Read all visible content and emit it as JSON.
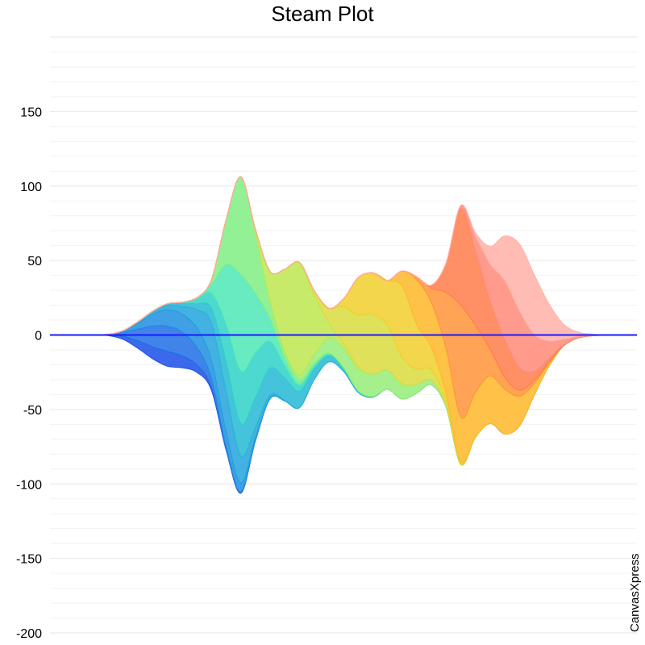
{
  "title": "Steam Plot",
  "watermark": "CanvasXpress",
  "chart_data": {
    "type": "area",
    "stacking": "streamgraph",
    "title": "Steam Plot",
    "xlabel": "",
    "ylabel": "",
    "ylim": [
      -200,
      200
    ],
    "yticks": [
      -200,
      -150,
      -100,
      -50,
      0,
      50,
      100,
      150
    ],
    "grid": true,
    "legend": "none",
    "x_count": 41,
    "series": [
      {
        "color": "#1a4fe8",
        "values": [
          0,
          0,
          0,
          0,
          0.5,
          2,
          5,
          8,
          10,
          8,
          5,
          2,
          0.5,
          0,
          0,
          0,
          0,
          0,
          0,
          0,
          0,
          0,
          0,
          0,
          0,
          0,
          0,
          0,
          0,
          0,
          0,
          0,
          0,
          0,
          0,
          0,
          0,
          0,
          0,
          0,
          0
        ]
      },
      {
        "color": "#1f6fe5",
        "values": [
          0,
          0,
          0,
          0,
          0.5,
          3,
          8,
          14,
          17,
          16,
          12,
          6,
          2,
          1,
          0,
          0,
          0,
          0,
          0,
          0,
          0,
          0,
          0,
          0,
          0,
          0,
          0,
          0,
          0,
          0,
          0,
          0,
          0,
          0,
          0,
          0,
          0,
          0,
          0,
          0,
          0
        ]
      },
      {
        "color": "#1f8ee0",
        "values": [
          0,
          0,
          0,
          0,
          0,
          1,
          4,
          8,
          11,
          12,
          13,
          12,
          10,
          6,
          2,
          0.5,
          0,
          0,
          0,
          0,
          0,
          0,
          0,
          0,
          0,
          0,
          0,
          0,
          0,
          0,
          0,
          0,
          0,
          0,
          0,
          0,
          0,
          0,
          0,
          0,
          0
        ]
      },
      {
        "color": "#22a3dc",
        "values": [
          0,
          0,
          0,
          0,
          0,
          0,
          1,
          2,
          3,
          5,
          12,
          25,
          27,
          18,
          7,
          2,
          0.5,
          0,
          0,
          0,
          0,
          0,
          0,
          0,
          0,
          0,
          0,
          0,
          0,
          0,
          0,
          0,
          0,
          0,
          0,
          0,
          0,
          0,
          0,
          0,
          0
        ]
      },
      {
        "color": "#25b8d5",
        "values": [
          0,
          0,
          0,
          0,
          0,
          0,
          0,
          0,
          1,
          2,
          4,
          10,
          20,
          22,
          20,
          18,
          15,
          11,
          7,
          4,
          2,
          1,
          0.5,
          0,
          0,
          0,
          0,
          0,
          0,
          0,
          0,
          0,
          0,
          0,
          0,
          0,
          0,
          0,
          0,
          0,
          0
        ]
      },
      {
        "color": "#2fd2c8",
        "values": [
          0,
          0,
          0,
          0,
          0,
          0,
          0,
          0,
          0,
          1,
          3,
          10,
          25,
          35,
          30,
          18,
          8,
          4,
          2,
          1,
          0.5,
          0,
          0,
          0,
          0,
          0,
          0,
          0,
          0,
          0,
          0,
          0,
          0,
          0,
          0,
          0,
          0,
          0,
          0,
          0,
          0
        ]
      },
      {
        "color": "#4de7b6",
        "values": [
          0,
          0,
          0,
          0,
          0,
          0,
          0,
          0,
          0,
          0,
          1,
          6,
          40,
          65,
          40,
          15,
          5,
          2,
          1,
          0.5,
          0,
          0,
          0,
          0,
          0,
          0,
          0,
          0,
          0,
          0,
          0,
          0,
          0,
          0,
          0,
          0,
          0,
          0,
          0,
          0,
          0
        ]
      },
      {
        "color": "#80ef82",
        "values": [
          0,
          0,
          0,
          0,
          0,
          0,
          0,
          0,
          0,
          0,
          0,
          3,
          30,
          65,
          40,
          12,
          4,
          2,
          1,
          0.5,
          0,
          0,
          0,
          0,
          0,
          0,
          0,
          0,
          0,
          0,
          0,
          0,
          0,
          0,
          0,
          0,
          0,
          0,
          0,
          0,
          0
        ]
      },
      {
        "color": "#95ec78",
        "values": [
          0,
          0,
          0,
          0,
          0,
          0,
          0,
          0,
          0,
          0,
          0,
          0,
          0,
          0,
          0,
          0,
          1,
          3,
          6,
          10,
          13,
          15,
          15,
          13,
          10,
          6,
          3,
          1,
          0,
          0,
          0,
          0,
          0,
          0,
          0,
          0,
          0,
          0,
          0,
          0,
          0
        ]
      },
      {
        "color": "#bde84f",
        "values": [
          0,
          0,
          0,
          0,
          0,
          0,
          0,
          0,
          0,
          0,
          0,
          0,
          0,
          0.5,
          3,
          20,
          55,
          75,
          40,
          10,
          3,
          1,
          0,
          0,
          0,
          0,
          0,
          0,
          0,
          0,
          0,
          0,
          0,
          0,
          0,
          0,
          0,
          0,
          0,
          0,
          0
        ]
      },
      {
        "color": "#d8dc3c",
        "values": [
          0,
          0,
          0,
          0,
          0,
          0,
          0,
          0,
          0,
          0,
          0,
          0,
          0,
          0,
          0,
          0,
          0,
          0.5,
          3,
          10,
          25,
          35,
          40,
          30,
          18,
          10,
          7,
          3,
          1,
          0,
          0,
          0,
          0,
          0,
          0,
          0,
          0,
          0,
          0,
          0,
          0
        ]
      },
      {
        "color": "#f1cf2c",
        "values": [
          0,
          0,
          0,
          0,
          0,
          0,
          0,
          0,
          0,
          0,
          0,
          0,
          0,
          0,
          0,
          0,
          0,
          0,
          0,
          0,
          5,
          25,
          28,
          30,
          48,
          30,
          15,
          5,
          1,
          0,
          0,
          0,
          0,
          0,
          0,
          0,
          0,
          0,
          0,
          0,
          0
        ]
      },
      {
        "color": "#ffb728",
        "values": [
          0,
          0,
          0,
          0,
          0,
          0,
          0,
          0,
          0,
          0,
          0,
          0,
          0,
          0,
          0,
          0,
          0,
          0,
          0,
          0,
          0,
          0,
          0,
          0,
          10,
          30,
          30,
          30,
          30,
          30,
          32,
          30,
          20,
          8,
          2,
          0,
          0,
          0,
          0,
          0,
          0
        ]
      },
      {
        "color": "#ff9338",
        "values": [
          0,
          0,
          0,
          0,
          0,
          0,
          0,
          0,
          0,
          0,
          0,
          0,
          0,
          0,
          0,
          0,
          0,
          0,
          0,
          0,
          0,
          0,
          0,
          0,
          0,
          2,
          10,
          38,
          75,
          45,
          18,
          8,
          4,
          2,
          1,
          0,
          0,
          0,
          0,
          0,
          0
        ]
      },
      {
        "color": "#ff7d4a",
        "values": [
          0,
          0,
          0,
          0,
          0,
          0,
          0,
          0,
          0,
          0,
          0,
          0,
          0,
          0,
          0,
          0,
          0,
          0,
          0,
          0,
          0,
          0,
          0,
          0,
          0,
          0,
          2,
          20,
          65,
          50,
          32,
          25,
          15,
          6,
          2,
          0.5,
          0,
          0,
          0,
          0,
          0
        ]
      },
      {
        "color": "#ff8a78",
        "values": [
          0,
          0,
          0,
          0,
          0,
          0,
          0,
          0,
          0,
          0,
          0,
          0,
          0,
          0,
          0,
          0,
          0,
          0,
          0,
          0,
          0,
          0,
          0,
          0,
          0,
          0,
          0,
          0,
          2,
          10,
          25,
          40,
          38,
          25,
          12,
          4,
          1,
          0,
          0,
          0,
          0
        ]
      },
      {
        "color": "#ffb0a8",
        "values": [
          0,
          0,
          0,
          0,
          0,
          0,
          0,
          0,
          0,
          0,
          0,
          0,
          0,
          0,
          0,
          0,
          0,
          0,
          0,
          0,
          0,
          0,
          0,
          0,
          0,
          0,
          0,
          0,
          0,
          2,
          12,
          30,
          45,
          40,
          25,
          10,
          3,
          1,
          0,
          0,
          0
        ]
      }
    ]
  }
}
